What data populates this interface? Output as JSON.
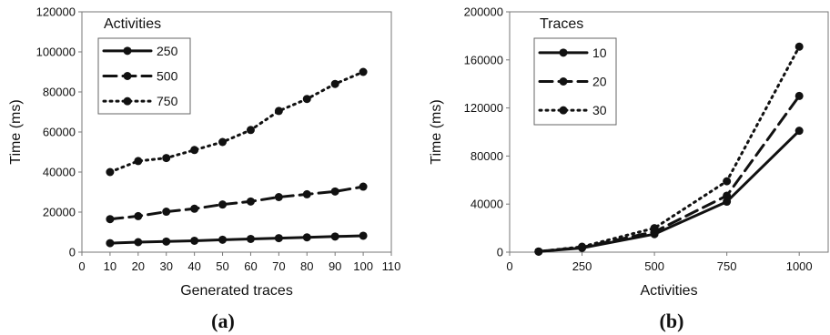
{
  "chart_data": [
    {
      "type": "line",
      "panel_label": "(a)",
      "xlabel": "Generated traces",
      "ylabel": "Time (ms)",
      "xlim": [
        0,
        110
      ],
      "ylim": [
        0,
        120000
      ],
      "x_ticks": [
        0,
        10,
        20,
        30,
        40,
        50,
        60,
        70,
        80,
        90,
        100,
        110
      ],
      "y_ticks": [
        0,
        20000,
        40000,
        60000,
        80000,
        100000,
        120000
      ],
      "grid": false,
      "legend": {
        "title": "Activities",
        "position": "top-left"
      },
      "x": [
        10,
        20,
        30,
        40,
        50,
        60,
        70,
        80,
        90,
        100
      ],
      "series": [
        {
          "name": "250",
          "style": "solid",
          "values": [
            4500,
            5000,
            5300,
            5700,
            6200,
            6600,
            7000,
            7400,
            7800,
            8200
          ]
        },
        {
          "name": "500",
          "style": "dashed",
          "values": [
            16500,
            18000,
            20200,
            21700,
            23800,
            25300,
            27500,
            28900,
            30300,
            32700
          ]
        },
        {
          "name": "750",
          "style": "dotted",
          "values": [
            40000,
            45500,
            47000,
            51000,
            55000,
            61000,
            70500,
            76500,
            84000,
            90000
          ]
        }
      ]
    },
    {
      "type": "line",
      "panel_label": "(b)",
      "xlabel": "Activities",
      "ylabel": "Time (ms)",
      "xlim": [
        0,
        1100
      ],
      "ylim": [
        0,
        200000
      ],
      "x_ticks": [
        0,
        250,
        500,
        750,
        1000
      ],
      "y_ticks": [
        0,
        40000,
        80000,
        120000,
        160000,
        200000
      ],
      "grid": false,
      "legend": {
        "title": "Traces",
        "position": "top-left"
      },
      "x": [
        100,
        250,
        500,
        750,
        1000
      ],
      "series": [
        {
          "name": "10",
          "style": "solid",
          "values": [
            500,
            3500,
            15000,
            42000,
            101000
          ]
        },
        {
          "name": "20",
          "style": "dashed",
          "values": [
            500,
            4000,
            17000,
            47000,
            130000
          ]
        },
        {
          "name": "30",
          "style": "dotted",
          "values": [
            500,
            4500,
            20000,
            59000,
            171000
          ]
        }
      ]
    }
  ]
}
